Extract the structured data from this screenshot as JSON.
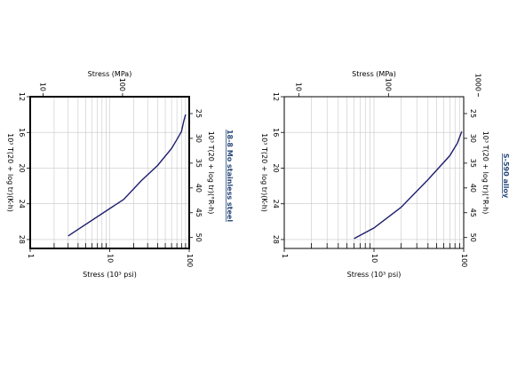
{
  "chart_data": [
    {
      "type": "line",
      "title": "18-8 Mo stainless steel",
      "xlabel": "Stress (10³ psi)",
      "x2label": "Stress (MPa)",
      "ylabel": "10³ T(20 + log tr)(K-h)",
      "y2label": "10³ T(20 + log tr)(°R-h)",
      "x_scale": "log",
      "xlim": [
        1,
        100
      ],
      "x_ticks": [
        "1",
        "10",
        "100"
      ],
      "x2lim": [
        6.895,
        689.5
      ],
      "x2_ticks": [
        "10",
        "100"
      ],
      "ylim": [
        12,
        29
      ],
      "y_ticks": [
        "12",
        "16",
        "20",
        "24",
        "28"
      ],
      "y2lim": [
        21.6,
        52.2
      ],
      "y2_ticks": [
        "25",
        "30",
        "35",
        "40",
        "45",
        "50"
      ],
      "grid": true,
      "series": [
        {
          "x": [
            3,
            15,
            25,
            40,
            60,
            70,
            80,
            85,
            90
          ],
          "y": [
            27.6,
            23.5,
            21.4,
            19.7,
            17.8,
            16.8,
            15.9,
            14.8,
            14.0
          ]
        }
      ]
    },
    {
      "type": "line",
      "title": "S-590 alloy",
      "xlabel": "Stress (10³ psi)",
      "x2label": "Stress (MPa)",
      "ylabel": "10³ T(20 + log tr)(K-h)",
      "y2label": "10³ T(20 + log tr)(°R-h)",
      "x_scale": "log",
      "xlim": [
        1,
        100
      ],
      "x_ticks": [
        "1",
        "10",
        "100"
      ],
      "x2lim": [
        6.895,
        689.5
      ],
      "x2_ticks": [
        "10",
        "100",
        "1000"
      ],
      "ylim": [
        12,
        29
      ],
      "y_ticks": [
        "12",
        "16",
        "20",
        "24",
        "28"
      ],
      "y2lim": [
        21.6,
        52.2
      ],
      "y2_ticks": [
        "25",
        "30",
        "35",
        "40",
        "45",
        "50"
      ],
      "grid": true,
      "series": [
        {
          "x": [
            6,
            10,
            20,
            40,
            70,
            85,
            95
          ],
          "y": [
            27.9,
            26.7,
            24.4,
            21.3,
            18.6,
            17.2,
            15.9
          ]
        }
      ]
    }
  ]
}
